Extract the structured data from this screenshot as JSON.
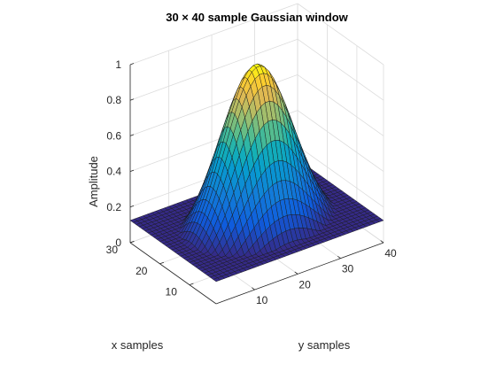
{
  "chart_data": {
    "type": "surface",
    "title": "30 × 40 sample Gaussian window",
    "xlabel": "x samples",
    "ylabel": "y samples",
    "zlabel": "Amplitude",
    "x_samples": 30,
    "y_samples": 40,
    "xlim": [
      1,
      30
    ],
    "ylim": [
      1,
      40
    ],
    "zlim": [
      0,
      1
    ],
    "x_ticks": [
      10,
      20,
      30
    ],
    "y_ticks": [
      10,
      20,
      30,
      40
    ],
    "z_ticks": [
      0,
      0.2,
      0.4,
      0.6,
      0.8,
      1
    ],
    "z_tick_labels": [
      "0",
      "0.2",
      "0.4",
      "0.6",
      "0.8",
      "1"
    ],
    "z_floor": 0.125,
    "gaussian_alpha": 2.5,
    "peak": 1,
    "colormap": "parula",
    "grid": true
  }
}
